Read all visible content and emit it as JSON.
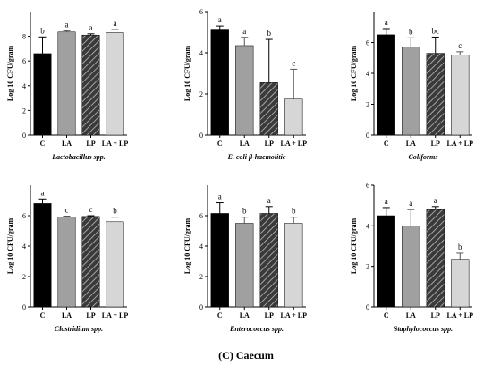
{
  "figure": {
    "caption": "(C) Caecum"
  },
  "colors": {
    "C": "#000000",
    "LA": "#a0a0a0",
    "LP": "#3a3a3a",
    "LA + LP": "#d6d6d6"
  },
  "chart_data": [
    {
      "type": "bar",
      "title": "",
      "xlabel": "Lactobacillus spp.",
      "ylabel": "Log 10 CFU/gram",
      "categories": [
        "C",
        "LA",
        "LP",
        "LA + LP"
      ],
      "values": [
        6.6,
        8.35,
        8.1,
        8.3
      ],
      "errors": [
        1.35,
        0.1,
        0.1,
        0.25
      ],
      "letters": [
        "b",
        "a",
        "a",
        "a"
      ],
      "ylim": [
        0,
        10
      ],
      "yticks": [
        0,
        2,
        4,
        6,
        8
      ],
      "patterns": [
        "solid",
        "solid",
        "hatch",
        "solid"
      ]
    },
    {
      "type": "bar",
      "title": "",
      "xlabel": "E. coli β-haemolitic",
      "ylabel": "Log 10 CFU/gram",
      "categories": [
        "C",
        "LA",
        "LP",
        "LA + LP"
      ],
      "values": [
        5.15,
        4.35,
        2.55,
        1.75
      ],
      "errors": [
        0.15,
        0.4,
        2.1,
        1.45
      ],
      "letters": [
        "a",
        "a",
        "b",
        "c"
      ],
      "ylim": [
        0,
        6
      ],
      "yticks": [
        0,
        2,
        4,
        6
      ],
      "patterns": [
        "solid",
        "solid",
        "hatch",
        "solid"
      ]
    },
    {
      "type": "bar",
      "title": "",
      "xlabel": "Coliforms",
      "ylabel": "Log 10 CFU/gram",
      "categories": [
        "C",
        "LA",
        "LP",
        "LA + LP"
      ],
      "values": [
        6.5,
        5.7,
        5.3,
        5.2
      ],
      "errors": [
        0.4,
        0.6,
        1.05,
        0.2
      ],
      "letters": [
        "a",
        "b",
        "bc",
        "c"
      ],
      "ylim": [
        0,
        8
      ],
      "yticks": [
        0,
        2,
        4,
        6
      ],
      "patterns": [
        "solid",
        "solid",
        "hatch",
        "solid"
      ]
    },
    {
      "type": "bar",
      "title": "",
      "xlabel": "Clostridium spp.",
      "ylabel": "Log 10 CFU/gram",
      "categories": [
        "C",
        "LA",
        "LP",
        "LA + LP"
      ],
      "values": [
        6.8,
        5.9,
        5.95,
        5.6
      ],
      "errors": [
        0.3,
        0.07,
        0.05,
        0.3
      ],
      "letters": [
        "a",
        "c",
        "c",
        "b"
      ],
      "ylim": [
        0,
        8
      ],
      "yticks": [
        0,
        2,
        4,
        6
      ],
      "patterns": [
        "solid",
        "solid",
        "hatch",
        "solid"
      ]
    },
    {
      "type": "bar",
      "title": "",
      "xlabel": "Enterococcus spp.",
      "ylabel": "Log 10 CFU/gram",
      "categories": [
        "C",
        "LA",
        "LP",
        "LA + LP"
      ],
      "values": [
        6.15,
        5.5,
        6.15,
        5.5
      ],
      "errors": [
        0.7,
        0.4,
        0.45,
        0.4
      ],
      "letters": [
        "a",
        "b",
        "a",
        "b"
      ],
      "ylim": [
        0,
        8
      ],
      "yticks": [
        0,
        2,
        4,
        6
      ],
      "patterns": [
        "solid",
        "solid",
        "hatch",
        "solid"
      ]
    },
    {
      "type": "bar",
      "title": "",
      "xlabel": "Staphylococcus spp.",
      "ylabel": "Log 10 CFU/gram",
      "categories": [
        "C",
        "LA",
        "LP",
        "LA + LP"
      ],
      "values": [
        4.5,
        4.0,
        4.8,
        2.35
      ],
      "errors": [
        0.4,
        0.8,
        0.15,
        0.3
      ],
      "letters": [
        "a",
        "a",
        "a",
        "b"
      ],
      "ylim": [
        0,
        6
      ],
      "yticks": [
        0,
        2,
        4,
        6
      ],
      "patterns": [
        "solid",
        "solid",
        "hatch",
        "solid"
      ]
    }
  ]
}
